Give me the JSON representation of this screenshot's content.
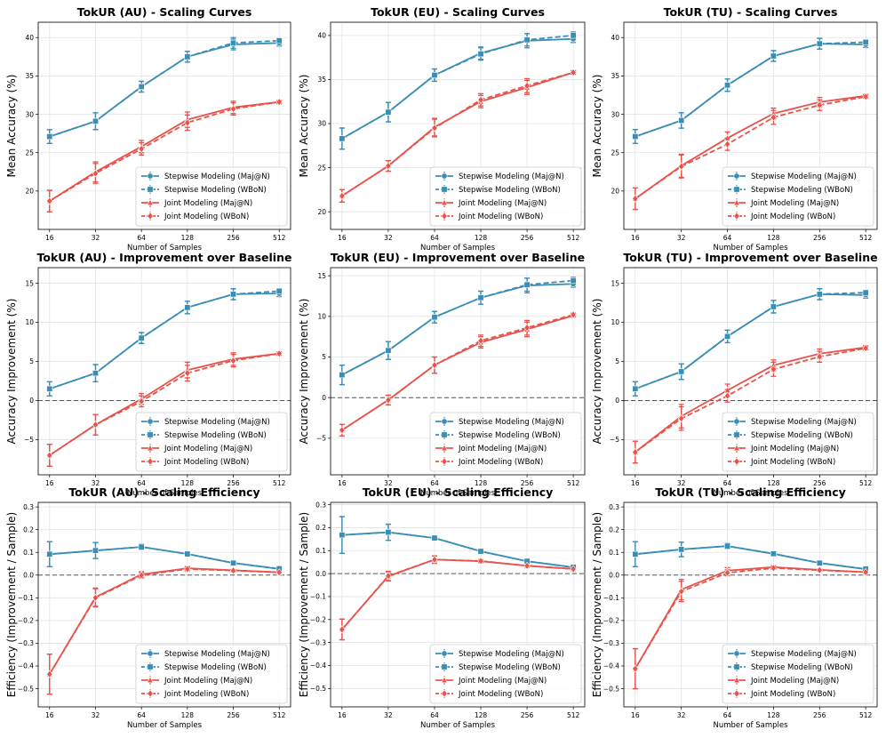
{
  "colors": {
    "stepwise": "#3a8db5",
    "joint": "#e8524a",
    "grid": "#e3e3e3",
    "baseline": "#555555"
  },
  "legend_labels": [
    "Stepwise Modeling (Maj@N)",
    "Stepwise Modeling (WBoN)",
    "Joint Modeling (Maj@N)",
    "Joint Modeling (WBoN)"
  ],
  "chart_data": [
    {
      "type": "line",
      "title": "TokUR (AU) - Scaling Curves",
      "xlabel": "Number of Samples",
      "ylabel": "Mean Accuracy (%)",
      "x": [
        16,
        32,
        64,
        128,
        256,
        512
      ],
      "x_scale": "log2",
      "ylim": [
        15,
        42
      ],
      "yticks": [
        20,
        25,
        30,
        35,
        40
      ],
      "yticklabels": [
        "20",
        "25",
        "30",
        "35",
        "40"
      ],
      "baseline": null,
      "legend": "bottom-right",
      "series": [
        {
          "name": "Stepwise Modeling (Maj@N)",
          "values": [
            27.1,
            29.1,
            33.6,
            37.5,
            39.1,
            39.3
          ],
          "err": [
            0.9,
            1.1,
            0.7,
            0.7,
            0.7,
            0.4
          ]
        },
        {
          "name": "Stepwise Modeling (WBoN)",
          "values": [
            27.1,
            29.1,
            33.6,
            37.5,
            39.3,
            39.6
          ],
          "err": [
            0.9,
            1.1,
            0.7,
            0.7,
            0.7,
            0.3
          ]
        },
        {
          "name": "Joint Modeling (Maj@N)",
          "values": [
            18.7,
            22.5,
            25.8,
            29.3,
            30.9,
            31.6
          ],
          "err": [
            1.4,
            1.3,
            0.8,
            1.0,
            0.8,
            0.2
          ]
        },
        {
          "name": "Joint Modeling (WBoN)",
          "values": [
            18.7,
            22.3,
            25.5,
            28.9,
            30.7,
            31.6
          ],
          "err": [
            1.4,
            1.3,
            0.8,
            1.0,
            0.8,
            0.2
          ]
        }
      ]
    },
    {
      "type": "line",
      "title": "TokUR (EU) - Scaling Curves",
      "xlabel": "Number of Samples",
      "ylabel": "Mean Accuracy (%)",
      "x": [
        16,
        32,
        64,
        128,
        256,
        512
      ],
      "x_scale": "log2",
      "ylim": [
        18,
        41.5
      ],
      "yticks": [
        20,
        25,
        30,
        35,
        40
      ],
      "yticklabels": [
        "20",
        "25",
        "30",
        "35",
        "40"
      ],
      "baseline": null,
      "legend": "bottom-right",
      "series": [
        {
          "name": "Stepwise Modeling (Maj@N)",
          "values": [
            28.3,
            31.3,
            35.5,
            38.0,
            39.4,
            39.6
          ],
          "err": [
            1.2,
            1.1,
            0.7,
            0.7,
            0.8,
            0.4
          ]
        },
        {
          "name": "Stepwise Modeling (WBoN)",
          "values": [
            28.3,
            31.3,
            35.5,
            37.9,
            39.5,
            40.0
          ],
          "err": [
            1.2,
            1.1,
            0.7,
            0.7,
            0.7,
            0.4
          ]
        },
        {
          "name": "Joint Modeling (Maj@N)",
          "values": [
            21.8,
            25.2,
            29.6,
            32.5,
            34.1,
            35.8
          ],
          "err": [
            0.7,
            0.6,
            1.0,
            0.7,
            0.8,
            0.2
          ]
        },
        {
          "name": "Joint Modeling (WBoN)",
          "values": [
            21.8,
            25.2,
            29.5,
            32.7,
            34.3,
            35.8
          ],
          "err": [
            0.7,
            0.6,
            1.0,
            0.7,
            0.8,
            0.2
          ]
        }
      ]
    },
    {
      "type": "line",
      "title": "TokUR (TU) - Scaling Curves",
      "xlabel": "Number of Samples",
      "ylabel": "Mean Accuracy (%)",
      "x": [
        16,
        32,
        64,
        128,
        256,
        512
      ],
      "x_scale": "log2",
      "ylim": [
        15,
        42
      ],
      "yticks": [
        20,
        25,
        30,
        35,
        40
      ],
      "yticklabels": [
        "20",
        "25",
        "30",
        "35",
        "40"
      ],
      "baseline": null,
      "legend": "bottom-right",
      "series": [
        {
          "name": "Stepwise Modeling (Maj@N)",
          "values": [
            27.1,
            29.2,
            33.8,
            37.6,
            39.2,
            39.1
          ],
          "err": [
            0.9,
            1.0,
            0.8,
            0.7,
            0.7,
            0.4
          ]
        },
        {
          "name": "Stepwise Modeling (WBoN)",
          "values": [
            27.1,
            29.2,
            33.8,
            37.6,
            39.2,
            39.4
          ],
          "err": [
            0.9,
            1.0,
            0.8,
            0.7,
            0.7,
            0.3
          ]
        },
        {
          "name": "Joint Modeling (Maj@N)",
          "values": [
            19.0,
            23.3,
            26.9,
            30.1,
            31.6,
            32.4
          ],
          "err": [
            1.4,
            1.5,
            0.8,
            0.7,
            0.6,
            0.2
          ]
        },
        {
          "name": "Joint Modeling (WBoN)",
          "values": [
            19.0,
            23.2,
            26.1,
            29.6,
            31.2,
            32.3
          ],
          "err": [
            1.4,
            1.5,
            0.8,
            0.9,
            0.7,
            0.2
          ]
        }
      ]
    },
    {
      "type": "line",
      "title": "TokUR (AU) - Improvement over Baseline",
      "xlabel": "Number of Samples",
      "ylabel": "Accuracy Improvement (%)",
      "x": [
        16,
        32,
        64,
        128,
        256,
        512
      ],
      "x_scale": "log2",
      "ylim": [
        -9.5,
        17
      ],
      "yticks": [
        -5,
        0,
        5,
        10,
        15
      ],
      "yticklabels": [
        "−5",
        "0",
        "5",
        "10",
        "15"
      ],
      "baseline": 0,
      "legend": "bottom-right",
      "series": [
        {
          "name": "Stepwise Modeling (Maj@N)",
          "values": [
            1.5,
            3.5,
            8.0,
            11.9,
            13.6,
            13.7
          ],
          "err": [
            0.9,
            1.1,
            0.7,
            0.8,
            0.7,
            0.4
          ]
        },
        {
          "name": "Stepwise Modeling (WBoN)",
          "values": [
            1.5,
            3.5,
            8.0,
            11.9,
            13.6,
            14.0
          ],
          "err": [
            0.9,
            1.1,
            0.7,
            0.8,
            0.7,
            0.3
          ]
        },
        {
          "name": "Joint Modeling (Maj@N)",
          "values": [
            -7.0,
            -3.1,
            0.2,
            3.9,
            5.3,
            6.0
          ],
          "err": [
            1.4,
            1.3,
            0.7,
            1.0,
            0.8,
            0.2
          ]
        },
        {
          "name": "Joint Modeling (WBoN)",
          "values": [
            -7.0,
            -3.1,
            -0.1,
            3.5,
            5.1,
            6.0
          ],
          "err": [
            1.4,
            1.3,
            0.7,
            1.0,
            0.8,
            0.2
          ]
        }
      ]
    },
    {
      "type": "line",
      "title": "TokUR (EU) - Improvement over Baseline",
      "xlabel": "Number of Samples",
      "ylabel": "Accuracy Improvement (%)",
      "x": [
        16,
        32,
        64,
        128,
        256,
        512
      ],
      "x_scale": "log2",
      "ylim": [
        -9.5,
        16
      ],
      "yticks": [
        -5,
        0,
        5,
        10,
        15
      ],
      "yticklabels": [
        "−5",
        "0",
        "5",
        "10",
        "15"
      ],
      "baseline": 0,
      "legend": "bottom-right",
      "series": [
        {
          "name": "Stepwise Modeling (Maj@N)",
          "values": [
            2.8,
            5.8,
            9.9,
            12.3,
            13.8,
            14.0
          ],
          "err": [
            1.2,
            1.1,
            0.7,
            0.8,
            0.9,
            0.4
          ]
        },
        {
          "name": "Stepwise Modeling (WBoN)",
          "values": [
            2.8,
            5.8,
            9.9,
            12.3,
            13.9,
            14.4
          ],
          "err": [
            1.2,
            1.1,
            0.7,
            0.8,
            0.8,
            0.4
          ]
        },
        {
          "name": "Joint Modeling (Maj@N)",
          "values": [
            -4.0,
            -0.3,
            4.0,
            6.8,
            8.4,
            10.1
          ],
          "err": [
            0.7,
            0.6,
            1.0,
            0.7,
            0.9,
            0.2
          ]
        },
        {
          "name": "Joint Modeling (WBoN)",
          "values": [
            -4.0,
            -0.3,
            4.0,
            7.0,
            8.6,
            10.2
          ],
          "err": [
            0.7,
            0.6,
            1.0,
            0.7,
            0.9,
            0.2
          ]
        }
      ]
    },
    {
      "type": "line",
      "title": "TokUR (TU) - Improvement over Baseline",
      "xlabel": "Number of Samples",
      "ylabel": "Accuracy Improvement (%)",
      "x": [
        16,
        32,
        64,
        128,
        256,
        512
      ],
      "x_scale": "log2",
      "ylim": [
        -9.5,
        17
      ],
      "yticks": [
        -5,
        0,
        5,
        10,
        15
      ],
      "yticklabels": [
        "−5",
        "0",
        "5",
        "10",
        "15"
      ],
      "baseline": 0,
      "legend": "bottom-right",
      "series": [
        {
          "name": "Stepwise Modeling (Maj@N)",
          "values": [
            1.5,
            3.7,
            8.2,
            12.0,
            13.6,
            13.5
          ],
          "err": [
            0.9,
            1.0,
            0.8,
            0.8,
            0.7,
            0.4
          ]
        },
        {
          "name": "Stepwise Modeling (WBoN)",
          "values": [
            1.5,
            3.7,
            8.2,
            12.0,
            13.6,
            13.8
          ],
          "err": [
            0.9,
            1.0,
            0.8,
            0.8,
            0.7,
            0.3
          ]
        },
        {
          "name": "Joint Modeling (Maj@N)",
          "values": [
            -6.6,
            -2.0,
            1.3,
            4.5,
            6.0,
            6.8
          ],
          "err": [
            1.4,
            1.5,
            0.8,
            0.7,
            0.6,
            0.2
          ]
        },
        {
          "name": "Joint Modeling (WBoN)",
          "values": [
            -6.6,
            -2.3,
            0.6,
            4.0,
            5.6,
            6.7
          ],
          "err": [
            1.4,
            1.5,
            0.8,
            0.9,
            0.7,
            0.2
          ]
        }
      ]
    },
    {
      "type": "line",
      "title": "TokUR (AU) - Scaling Efficiency",
      "xlabel": "Number of Samples",
      "ylabel": "Efficiency (Improvement / Sample)",
      "x": [
        16,
        32,
        64,
        128,
        256,
        512
      ],
      "x_scale": "log2",
      "ylim": [
        -0.58,
        0.32
      ],
      "yticks": [
        -0.5,
        -0.4,
        -0.3,
        -0.2,
        -0.1,
        0.0,
        0.1,
        0.2,
        0.3
      ],
      "yticklabels": [
        "−0.5",
        "−0.4",
        "−0.3",
        "−0.2",
        "−0.1",
        "0.0",
        "0.1",
        "0.2",
        "0.3"
      ],
      "baseline": 0,
      "legend": "bottom-right",
      "series": [
        {
          "name": "Stepwise Modeling (Maj@N)",
          "values": [
            0.092,
            0.108,
            0.124,
            0.093,
            0.053,
            0.027
          ],
          "err": [
            0.055,
            0.035,
            0.012,
            0.006,
            0.003,
            0.001
          ]
        },
        {
          "name": "Stepwise Modeling (WBoN)",
          "values": [
            0.092,
            0.108,
            0.124,
            0.093,
            0.053,
            0.028
          ],
          "err": [
            0.055,
            0.035,
            0.012,
            0.006,
            0.003,
            0.001
          ]
        },
        {
          "name": "Joint Modeling (Maj@N)",
          "values": [
            -0.436,
            -0.097,
            0.003,
            0.03,
            0.021,
            0.012
          ],
          "err": [
            0.088,
            0.04,
            0.012,
            0.008,
            0.003,
            0.001
          ]
        },
        {
          "name": "Joint Modeling (WBoN)",
          "values": [
            -0.436,
            -0.1,
            -0.001,
            0.027,
            0.02,
            0.012
          ],
          "err": [
            0.088,
            0.04,
            0.012,
            0.008,
            0.003,
            0.001
          ]
        }
      ]
    },
    {
      "type": "line",
      "title": "TokUR (EU) - Scaling Efficiency",
      "xlabel": "Number of Samples",
      "ylabel": "Efficiency (Improvement / Sample)",
      "x": [
        16,
        32,
        64,
        128,
        256,
        512
      ],
      "x_scale": "log2",
      "ylim": [
        -0.58,
        0.31
      ],
      "yticks": [
        -0.5,
        -0.4,
        -0.3,
        -0.2,
        -0.1,
        0.0,
        0.1,
        0.2,
        0.3
      ],
      "yticklabels": [
        "−0.5",
        "−0.4",
        "−0.3",
        "−0.2",
        "−0.1",
        "0.0",
        "0.1",
        "0.2",
        "0.3"
      ],
      "baseline": 0,
      "legend": "bottom-right",
      "series": [
        {
          "name": "Stepwise Modeling (Maj@N)",
          "values": [
            0.168,
            0.18,
            0.155,
            0.097,
            0.054,
            0.027
          ],
          "err": [
            0.08,
            0.035,
            0.01,
            0.006,
            0.003,
            0.001
          ]
        },
        {
          "name": "Stepwise Modeling (WBoN)",
          "values": [
            0.168,
            0.18,
            0.155,
            0.097,
            0.054,
            0.028
          ],
          "err": [
            0.08,
            0.035,
            0.01,
            0.006,
            0.003,
            0.001
          ]
        },
        {
          "name": "Joint Modeling (Maj@N)",
          "values": [
            -0.243,
            -0.012,
            0.061,
            0.054,
            0.034,
            0.02
          ],
          "err": [
            0.045,
            0.02,
            0.016,
            0.006,
            0.003,
            0.001
          ]
        },
        {
          "name": "Joint Modeling (WBoN)",
          "values": [
            -0.243,
            -0.01,
            0.061,
            0.055,
            0.034,
            0.02
          ],
          "err": [
            0.045,
            0.02,
            0.016,
            0.006,
            0.003,
            0.001
          ]
        }
      ]
    },
    {
      "type": "line",
      "title": "TokUR (TU) - Scaling Efficiency",
      "xlabel": "Number of Samples",
      "ylabel": "Efficiency (Improvement / Sample)",
      "x": [
        16,
        32,
        64,
        128,
        256,
        512
      ],
      "x_scale": "log2",
      "ylim": [
        -0.58,
        0.32
      ],
      "yticks": [
        -0.5,
        -0.4,
        -0.3,
        -0.2,
        -0.1,
        0.0,
        0.1,
        0.2,
        0.3
      ],
      "yticklabels": [
        "−0.5",
        "−0.4",
        "−0.3",
        "−0.2",
        "−0.1",
        "0.0",
        "0.1",
        "0.2",
        "0.3"
      ],
      "baseline": 0,
      "legend": "bottom-right",
      "series": [
        {
          "name": "Stepwise Modeling (Maj@N)",
          "values": [
            0.092,
            0.113,
            0.128,
            0.094,
            0.053,
            0.026
          ],
          "err": [
            0.055,
            0.032,
            0.012,
            0.006,
            0.003,
            0.001
          ]
        },
        {
          "name": "Stepwise Modeling (WBoN)",
          "values": [
            0.092,
            0.113,
            0.128,
            0.094,
            0.053,
            0.027
          ],
          "err": [
            0.055,
            0.032,
            0.012,
            0.006,
            0.003,
            0.001
          ]
        },
        {
          "name": "Joint Modeling (Maj@N)",
          "values": [
            -0.412,
            -0.064,
            0.02,
            0.035,
            0.023,
            0.013
          ],
          "err": [
            0.088,
            0.045,
            0.013,
            0.006,
            0.003,
            0.001
          ]
        },
        {
          "name": "Joint Modeling (WBoN)",
          "values": [
            -0.412,
            -0.072,
            0.01,
            0.031,
            0.022,
            0.013
          ],
          "err": [
            0.088,
            0.045,
            0.013,
            0.006,
            0.003,
            0.001
          ]
        }
      ]
    }
  ]
}
